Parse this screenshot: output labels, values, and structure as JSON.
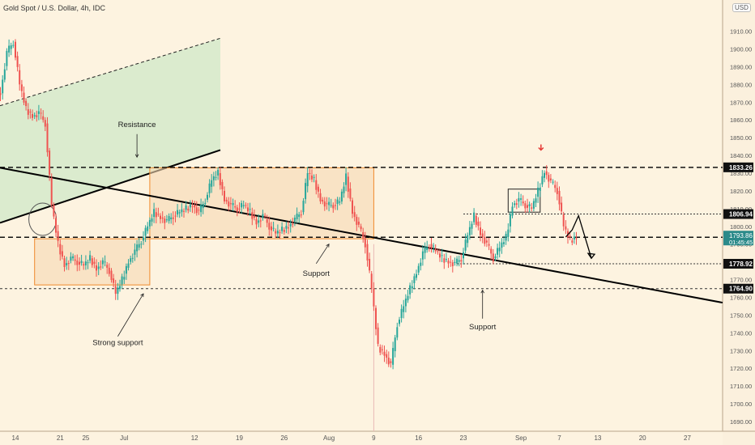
{
  "header": {
    "title": "Gold Spot / U.S. Dollar, 4h, IDC",
    "currency": "USD"
  },
  "colors": {
    "background": "#fdf3e0",
    "up": "#26a69a",
    "down": "#ef5350",
    "box_fill": "#f7d9b3",
    "box_stroke": "#f08a2c",
    "channel_fill": "#cfe8c8",
    "last_price_bg": "#2b8a8a"
  },
  "chart_data": {
    "type": "candlestick",
    "symbol": "XAUUSD",
    "timeframe": "4h",
    "ylim": [
      1685,
      1915
    ],
    "y_ticks": [
      1690,
      1700,
      1710,
      1720,
      1730,
      1740,
      1750,
      1760,
      1770,
      1780,
      1790,
      1800,
      1810,
      1820,
      1830,
      1840,
      1850,
      1860,
      1870,
      1880,
      1890,
      1900,
      1910
    ],
    "x_ticks": [
      {
        "label": "14",
        "x": "2021-06-14"
      },
      {
        "label": "21",
        "x": "2021-06-21"
      },
      {
        "label": "25",
        "x": "2021-06-25"
      },
      {
        "label": "Jul",
        "x": "2021-07-01"
      },
      {
        "label": "12",
        "x": "2021-07-12"
      },
      {
        "label": "19",
        "x": "2021-07-19"
      },
      {
        "label": "26",
        "x": "2021-07-26"
      },
      {
        "label": "Aug",
        "x": "2021-08-02"
      },
      {
        "label": "9",
        "x": "2021-08-09"
      },
      {
        "label": "16",
        "x": "2021-08-16"
      },
      {
        "label": "23",
        "x": "2021-08-23"
      },
      {
        "label": "Sep",
        "x": "2021-09-01"
      },
      {
        "label": "7",
        "x": "2021-09-07"
      },
      {
        "label": "13",
        "x": "2021-09-13"
      },
      {
        "label": "20",
        "x": "2021-09-20"
      },
      {
        "label": "27",
        "x": "2021-09-27"
      }
    ],
    "price_path": [
      {
        "x": "2021-06-11",
        "y": 1875
      },
      {
        "x": "2021-06-12",
        "y": 1898
      },
      {
        "x": "2021-06-13",
        "y": 1904
      },
      {
        "x": "2021-06-14",
        "y": 1880
      },
      {
        "x": "2021-06-15",
        "y": 1866
      },
      {
        "x": "2021-06-16",
        "y": 1862
      },
      {
        "x": "2021-06-17",
        "y": 1864
      },
      {
        "x": "2021-06-18",
        "y": 1858
      },
      {
        "x": "2021-06-19",
        "y": 1812
      },
      {
        "x": "2021-06-20",
        "y": 1790
      },
      {
        "x": "2021-06-21",
        "y": 1778
      },
      {
        "x": "2021-06-22",
        "y": 1782
      },
      {
        "x": "2021-06-23",
        "y": 1780
      },
      {
        "x": "2021-06-24",
        "y": 1778
      },
      {
        "x": "2021-06-25",
        "y": 1782
      },
      {
        "x": "2021-06-26",
        "y": 1776
      },
      {
        "x": "2021-06-27",
        "y": 1780
      },
      {
        "x": "2021-06-28",
        "y": 1775
      },
      {
        "x": "2021-06-29",
        "y": 1762
      },
      {
        "x": "2021-06-30",
        "y": 1770
      },
      {
        "x": "2021-07-01",
        "y": 1780
      },
      {
        "x": "2021-07-02",
        "y": 1786
      },
      {
        "x": "2021-07-03",
        "y": 1792
      },
      {
        "x": "2021-07-04",
        "y": 1800
      },
      {
        "x": "2021-07-05",
        "y": 1808
      },
      {
        "x": "2021-07-06",
        "y": 1805
      },
      {
        "x": "2021-07-07",
        "y": 1803
      },
      {
        "x": "2021-07-08",
        "y": 1806
      },
      {
        "x": "2021-07-09",
        "y": 1808
      },
      {
        "x": "2021-07-10",
        "y": 1810
      },
      {
        "x": "2021-07-11",
        "y": 1812
      },
      {
        "x": "2021-07-12",
        "y": 1808
      },
      {
        "x": "2021-07-13",
        "y": 1815
      },
      {
        "x": "2021-07-14",
        "y": 1826
      },
      {
        "x": "2021-07-15",
        "y": 1830
      },
      {
        "x": "2021-07-16",
        "y": 1815
      },
      {
        "x": "2021-07-17",
        "y": 1812
      },
      {
        "x": "2021-07-18",
        "y": 1810
      },
      {
        "x": "2021-07-19",
        "y": 1812
      },
      {
        "x": "2021-07-20",
        "y": 1808
      },
      {
        "x": "2021-07-21",
        "y": 1802
      },
      {
        "x": "2021-07-22",
        "y": 1806
      },
      {
        "x": "2021-07-23",
        "y": 1800
      },
      {
        "x": "2021-07-24",
        "y": 1796
      },
      {
        "x": "2021-07-25",
        "y": 1798
      },
      {
        "x": "2021-07-26",
        "y": 1800
      },
      {
        "x": "2021-07-27",
        "y": 1804
      },
      {
        "x": "2021-07-28",
        "y": 1808
      },
      {
        "x": "2021-07-29",
        "y": 1830
      },
      {
        "x": "2021-07-30",
        "y": 1826
      },
      {
        "x": "2021-07-31",
        "y": 1815
      },
      {
        "x": "2021-08-01",
        "y": 1812
      },
      {
        "x": "2021-08-02",
        "y": 1812
      },
      {
        "x": "2021-08-03",
        "y": 1814
      },
      {
        "x": "2021-08-04",
        "y": 1828
      },
      {
        "x": "2021-08-05",
        "y": 1808
      },
      {
        "x": "2021-08-06",
        "y": 1800
      },
      {
        "x": "2021-08-07",
        "y": 1790
      },
      {
        "x": "2021-08-08",
        "y": 1765
      },
      {
        "x": "2021-08-09",
        "y": 1732
      },
      {
        "x": "2021-08-10",
        "y": 1728
      },
      {
        "x": "2021-08-11",
        "y": 1722
      },
      {
        "x": "2021-08-12",
        "y": 1745
      },
      {
        "x": "2021-08-13",
        "y": 1755
      },
      {
        "x": "2021-08-14",
        "y": 1765
      },
      {
        "x": "2021-08-15",
        "y": 1774
      },
      {
        "x": "2021-08-16",
        "y": 1785
      },
      {
        "x": "2021-08-17",
        "y": 1790
      },
      {
        "x": "2021-08-18",
        "y": 1786
      },
      {
        "x": "2021-08-19",
        "y": 1782
      },
      {
        "x": "2021-08-20",
        "y": 1780
      },
      {
        "x": "2021-08-21",
        "y": 1779
      },
      {
        "x": "2021-08-22",
        "y": 1782
      },
      {
        "x": "2021-08-23",
        "y": 1795
      },
      {
        "x": "2021-08-24",
        "y": 1806
      },
      {
        "x": "2021-08-25",
        "y": 1796
      },
      {
        "x": "2021-08-26",
        "y": 1790
      },
      {
        "x": "2021-08-27",
        "y": 1782
      },
      {
        "x": "2021-08-28",
        "y": 1788
      },
      {
        "x": "2021-08-29",
        "y": 1794
      },
      {
        "x": "2021-08-30",
        "y": 1812
      },
      {
        "x": "2021-08-31",
        "y": 1815
      },
      {
        "x": "2021-09-01",
        "y": 1812
      },
      {
        "x": "2021-09-02",
        "y": 1810
      },
      {
        "x": "2021-09-03",
        "y": 1820
      },
      {
        "x": "2021-09-04",
        "y": 1831
      },
      {
        "x": "2021-09-05",
        "y": 1825
      },
      {
        "x": "2021-09-06",
        "y": 1820
      },
      {
        "x": "2021-09-07",
        "y": 1800
      },
      {
        "x": "2021-09-08",
        "y": 1792
      },
      {
        "x": "2021-09-09",
        "y": 1794
      }
    ],
    "horizontal_levels": [
      1833.26,
      1806.94,
      1793.86,
      1778.92,
      1764.9
    ],
    "price_labels": [
      {
        "value": "1833.26",
        "y": 1833.26
      },
      {
        "value": "1806.94",
        "y": 1806.94
      },
      {
        "value": "1778.92",
        "y": 1778.92
      },
      {
        "value": "1764.90",
        "y": 1764.9
      }
    ],
    "last_price": {
      "value": "1793.86",
      "countdown": "01:45:45",
      "y": 1793.86
    },
    "annotations": [
      {
        "text": "Resistance",
        "x": "2021-07-03",
        "y": 1856
      },
      {
        "text": "Support",
        "x": "2021-07-31",
        "y": 1772
      },
      {
        "text": "Strong support",
        "x": "2021-06-30",
        "y": 1733
      },
      {
        "text": "Support",
        "x": "2021-08-26",
        "y": 1742
      }
    ]
  }
}
